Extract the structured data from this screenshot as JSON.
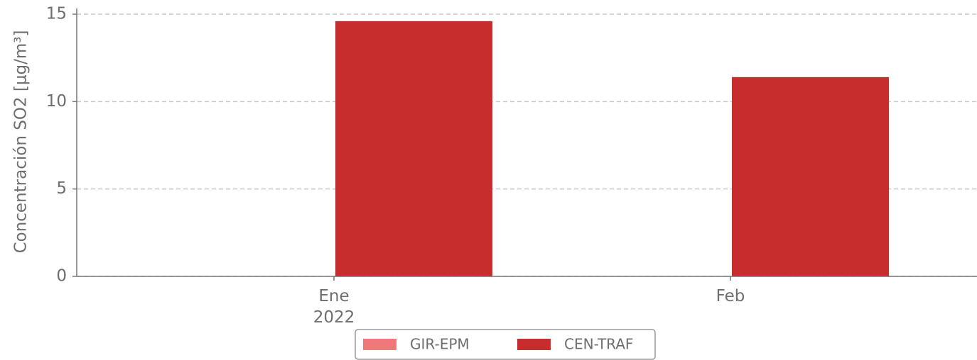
{
  "chart_data": {
    "type": "bar",
    "y_label": "Concentración SO2 [μg/m³]",
    "categories": [
      "Ene\n2022",
      "Feb"
    ],
    "series": [
      {
        "name": "GIR-EPM",
        "color": "#f07878",
        "values": [
          null,
          null
        ]
      },
      {
        "name": "CEN-TRAF",
        "color": "#c62d2d",
        "values": [
          14.6,
          11.4
        ]
      }
    ],
    "ylim": [
      0,
      15
    ],
    "yticks": [
      0,
      5,
      10,
      15
    ],
    "grid": true,
    "legend": "bottom"
  }
}
